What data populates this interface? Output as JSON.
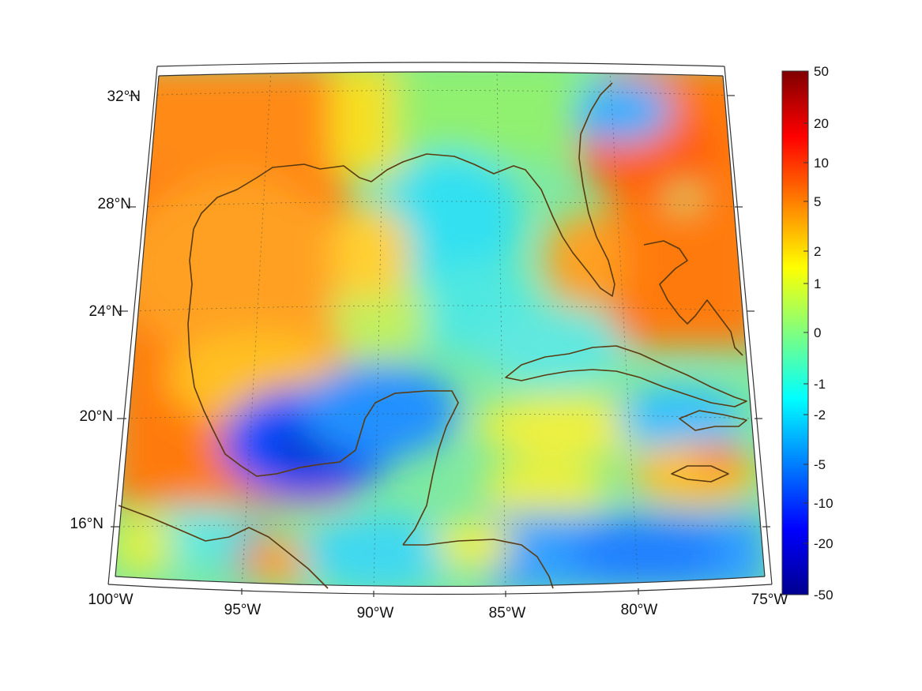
{
  "map": {
    "projection": "conic",
    "lon_range": [
      -100,
      -75
    ],
    "lat_range": [
      14,
      33
    ],
    "graticule": "dotted",
    "lon_labels": [
      "100°W",
      "95°W",
      "90°W",
      "85°W",
      "80°W",
      "75°W"
    ],
    "lat_labels": [
      "32°N",
      "28°N",
      "24°N",
      "20°N",
      "16°N"
    ],
    "coastline_color": "#5a3a10",
    "field_colormap": "jet"
  },
  "colorbar": {
    "orientation": "vertical",
    "tick_labels": [
      "50",
      "20",
      "10",
      "5",
      "2",
      "1",
      "0",
      "-1",
      "-2",
      "-5",
      "-10",
      "-20",
      "-50"
    ],
    "scale": "symmetric-log",
    "range": [
      -50,
      50
    ]
  }
}
